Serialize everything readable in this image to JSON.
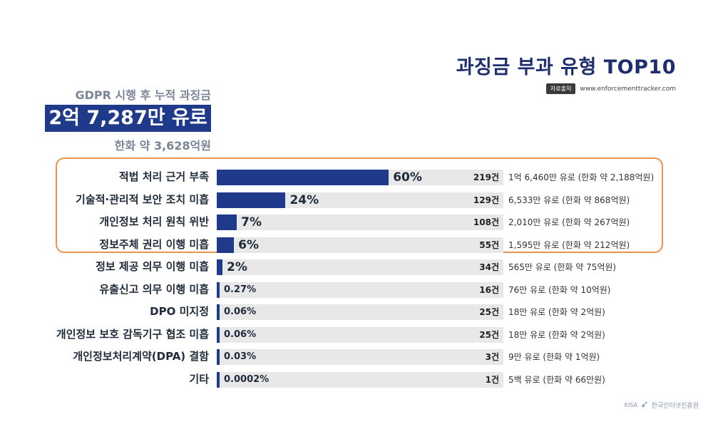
{
  "header": {
    "title": "과징금 부과 유형 TOP10",
    "source_tag": "자료출처",
    "source_url": "www.enforcementtracker.com"
  },
  "summary": {
    "label": "GDPR 시행 후 누적 과징금",
    "total": "2억 7,287만 유로",
    "krw": "한화 약 3,628억원"
  },
  "logo": {
    "mark": "KISA",
    "name": "한국인터넷진흥원",
    "icon": "kisa-swoosh-icon"
  },
  "colors": {
    "bar": "#1f3a8a",
    "track": "#e8e8e8",
    "highlight": "#e8924f",
    "title": "#1f2f6e"
  },
  "chart_data": {
    "type": "bar",
    "orientation": "horizontal",
    "highlighted_top": 4,
    "categories": [
      "적법 처리 근거 부족",
      "기술적·관리적 보안 조치 미흡",
      "개인정보 처리 원칙 위반",
      "정보주체 권리 이행 미흡",
      "정보 제공 의무 이행 미흡",
      "유출신고 의무 이행 미흡",
      "DPO 미지정",
      "개인정보 보호 감독기구 협조 미흡",
      "개인정보처리계약(DPA) 결함",
      "기타"
    ],
    "values": [
      60,
      24,
      7,
      6,
      2,
      0.27,
      0.06,
      0.06,
      0.03,
      0.0002
    ],
    "value_labels": [
      "60%",
      "24%",
      "7%",
      "6%",
      "2%",
      "0.27%",
      "0.06%",
      "0.06%",
      "0.03%",
      "0.0002%"
    ],
    "counts": [
      "219건",
      "129건",
      "108건",
      "55건",
      "34건",
      "16건",
      "25건",
      "25건",
      "3건",
      "1건"
    ],
    "amounts": [
      "1억 6,460만 유로 (한화 약 2,188억원)",
      "6,533만 유로 (한화 약 868억원)",
      "2,010만 유로 (한화 약 267억원)",
      "1,595만 유로 (한화 약 212억원)",
      "565만 유로 (한화 약 75억원)",
      "76만 유로 (한화 약 10억원)",
      "18만 유로 (한화 약 2억원)",
      "18만 유로 (한화 약 2억원)",
      "9만 유로 (한화 약 1억원)",
      "5백 유로 (한화 약 66만원)"
    ],
    "xlim": [
      0,
      100
    ]
  }
}
